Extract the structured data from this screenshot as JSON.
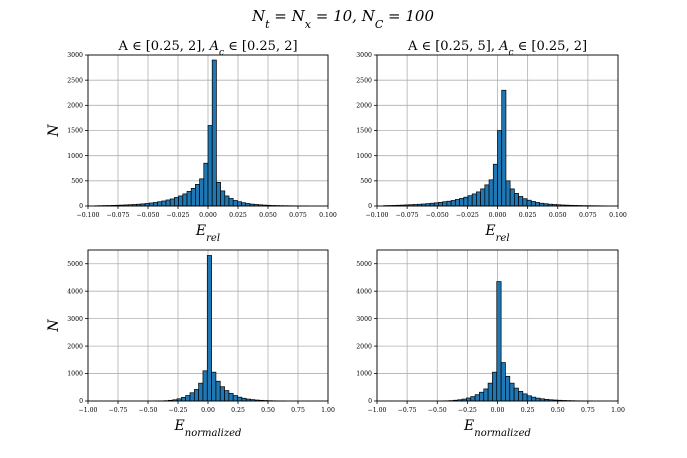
{
  "figure": {
    "suptitle": "N_t = N_x = 10,    N_C = 100"
  },
  "chart_data": [
    {
      "type": "bar",
      "title": "A ∈ [0.25, 2], A_c ∈ [0.25, 2]",
      "xlabel": "E_rel",
      "ylabel": "N",
      "xlim": [
        -0.1,
        0.1
      ],
      "ylim": [
        0,
        3000
      ],
      "xticks": [
        -0.1,
        -0.075,
        -0.05,
        -0.025,
        0.0,
        0.025,
        0.05,
        0.075,
        0.1
      ],
      "xtick_labels": [
        "−0.100",
        "−0.075",
        "−0.050",
        "−0.025",
        "0.000",
        "0.025",
        "0.050",
        "0.075",
        "0.100"
      ],
      "yticks": [
        0,
        500,
        1000,
        1500,
        2000,
        2500,
        3000
      ],
      "ytick_labels": [
        "0",
        "500",
        "1000",
        "1500",
        "2000",
        "2500",
        "3000"
      ],
      "grid": true,
      "bin_width": 0.0035,
      "bins": [
        [
          -0.0945,
          5
        ],
        [
          -0.091,
          7
        ],
        [
          -0.0875,
          9
        ],
        [
          -0.084,
          10
        ],
        [
          -0.0805,
          13
        ],
        [
          -0.077,
          15
        ],
        [
          -0.0735,
          18
        ],
        [
          -0.07,
          22
        ],
        [
          -0.0665,
          26
        ],
        [
          -0.063,
          30
        ],
        [
          -0.0595,
          36
        ],
        [
          -0.056,
          42
        ],
        [
          -0.0525,
          50
        ],
        [
          -0.049,
          60
        ],
        [
          -0.0455,
          70
        ],
        [
          -0.042,
          85
        ],
        [
          -0.0385,
          100
        ],
        [
          -0.035,
          120
        ],
        [
          -0.0315,
          140
        ],
        [
          -0.028,
          170
        ],
        [
          -0.0245,
          200
        ],
        [
          -0.021,
          240
        ],
        [
          -0.0175,
          290
        ],
        [
          -0.014,
          350
        ],
        [
          -0.0105,
          430
        ],
        [
          -0.007,
          540
        ],
        [
          -0.0035,
          850
        ],
        [
          0.0,
          1600
        ],
        [
          0.0035,
          2900
        ],
        [
          0.007,
          470
        ],
        [
          0.0105,
          300
        ],
        [
          0.014,
          200
        ],
        [
          0.0175,
          150
        ],
        [
          0.021,
          110
        ],
        [
          0.0245,
          85
        ],
        [
          0.028,
          65
        ],
        [
          0.0315,
          50
        ],
        [
          0.035,
          38
        ],
        [
          0.0385,
          30
        ],
        [
          0.042,
          24
        ],
        [
          0.0455,
          18
        ],
        [
          0.049,
          14
        ],
        [
          0.0525,
          11
        ],
        [
          0.056,
          9
        ],
        [
          0.0595,
          7
        ],
        [
          0.063,
          6
        ],
        [
          0.0665,
          5
        ],
        [
          0.07,
          4
        ],
        [
          0.0735,
          3
        ],
        [
          0.077,
          3
        ],
        [
          0.0805,
          2
        ]
      ]
    },
    {
      "type": "bar",
      "title": "A ∈ [0.25, 5], A_c ∈ [0.25, 2]",
      "xlabel": "E_rel",
      "ylabel": "",
      "xlim": [
        -0.1,
        0.1
      ],
      "ylim": [
        0,
        3000
      ],
      "xticks": [
        -0.1,
        -0.075,
        -0.05,
        -0.025,
        0.0,
        0.025,
        0.05,
        0.075,
        0.1
      ],
      "xtick_labels": [
        "−0.100",
        "−0.075",
        "−0.050",
        "−0.025",
        "0.000",
        "0.025",
        "0.050",
        "0.075",
        "0.100"
      ],
      "yticks": [
        0,
        500,
        1000,
        1500,
        2000,
        2500,
        3000
      ],
      "ytick_labels": [
        "0",
        "500",
        "1000",
        "1500",
        "2000",
        "2500",
        "3000"
      ],
      "grid": true,
      "bin_width": 0.0035,
      "bins": [
        [
          -0.0945,
          8
        ],
        [
          -0.091,
          10
        ],
        [
          -0.0875,
          12
        ],
        [
          -0.084,
          15
        ],
        [
          -0.0805,
          18
        ],
        [
          -0.077,
          22
        ],
        [
          -0.0735,
          26
        ],
        [
          -0.07,
          30
        ],
        [
          -0.0665,
          35
        ],
        [
          -0.063,
          40
        ],
        [
          -0.0595,
          47
        ],
        [
          -0.056,
          55
        ],
        [
          -0.0525,
          63
        ],
        [
          -0.049,
          72
        ],
        [
          -0.0455,
          85
        ],
        [
          -0.042,
          95
        ],
        [
          -0.0385,
          110
        ],
        [
          -0.035,
          130
        ],
        [
          -0.0315,
          150
        ],
        [
          -0.028,
          175
        ],
        [
          -0.0245,
          205
        ],
        [
          -0.021,
          240
        ],
        [
          -0.0175,
          280
        ],
        [
          -0.014,
          340
        ],
        [
          -0.0105,
          420
        ],
        [
          -0.007,
          520
        ],
        [
          -0.0035,
          830
        ],
        [
          0.0,
          1500
        ],
        [
          0.0035,
          2300
        ],
        [
          0.007,
          500
        ],
        [
          0.0105,
          340
        ],
        [
          0.014,
          250
        ],
        [
          0.0175,
          190
        ],
        [
          0.021,
          145
        ],
        [
          0.0245,
          115
        ],
        [
          0.028,
          90
        ],
        [
          0.0315,
          70
        ],
        [
          0.035,
          55
        ],
        [
          0.0385,
          45
        ],
        [
          0.042,
          36
        ],
        [
          0.0455,
          30
        ],
        [
          0.049,
          25
        ],
        [
          0.0525,
          20
        ],
        [
          0.056,
          17
        ],
        [
          0.0595,
          14
        ],
        [
          0.063,
          12
        ],
        [
          0.0665,
          10
        ],
        [
          0.07,
          8
        ],
        [
          0.0735,
          7
        ],
        [
          0.077,
          6
        ],
        [
          0.0805,
          5
        ],
        [
          0.084,
          4
        ],
        [
          0.0875,
          3
        ]
      ]
    },
    {
      "type": "bar",
      "title": "",
      "xlabel": "E_normalized",
      "ylabel": "N",
      "xlim": [
        -1.0,
        1.0
      ],
      "ylim": [
        0,
        5500
      ],
      "xticks": [
        -1.0,
        -0.75,
        -0.5,
        -0.25,
        0.0,
        0.25,
        0.5,
        0.75,
        1.0
      ],
      "xtick_labels": [
        "−1.00",
        "−0.75",
        "−0.50",
        "−0.25",
        "0.00",
        "0.25",
        "0.50",
        "0.75",
        "1.00"
      ],
      "yticks": [
        0,
        1000,
        2000,
        3000,
        4000,
        5000
      ],
      "ytick_labels": [
        "0",
        "1000",
        "2000",
        "3000",
        "4000",
        "5000"
      ],
      "grid": true,
      "bin_width": 0.036,
      "bins": [
        [
          -0.438,
          3
        ],
        [
          -0.402,
          6
        ],
        [
          -0.366,
          12
        ],
        [
          -0.33,
          25
        ],
        [
          -0.294,
          45
        ],
        [
          -0.258,
          80
        ],
        [
          -0.222,
          130
        ],
        [
          -0.186,
          200
        ],
        [
          -0.15,
          300
        ],
        [
          -0.114,
          420
        ],
        [
          -0.078,
          650
        ],
        [
          -0.042,
          1100
        ],
        [
          -0.006,
          5300
        ],
        [
          0.03,
          1050
        ],
        [
          0.066,
          720
        ],
        [
          0.102,
          520
        ],
        [
          0.138,
          380
        ],
        [
          0.174,
          280
        ],
        [
          0.21,
          200
        ],
        [
          0.246,
          140
        ],
        [
          0.282,
          100
        ],
        [
          0.318,
          70
        ],
        [
          0.354,
          50
        ],
        [
          0.39,
          35
        ],
        [
          0.426,
          25
        ],
        [
          0.462,
          18
        ],
        [
          0.498,
          12
        ],
        [
          0.534,
          8
        ],
        [
          0.57,
          5
        ],
        [
          0.606,
          3
        ]
      ]
    },
    {
      "type": "bar",
      "title": "",
      "xlabel": "E_normalized",
      "ylabel": "",
      "xlim": [
        -1.0,
        1.0
      ],
      "ylim": [
        0,
        5500
      ],
      "xticks": [
        -1.0,
        -0.75,
        -0.5,
        -0.25,
        0.0,
        0.25,
        0.5,
        0.75,
        1.0
      ],
      "xtick_labels": [
        "−1.00",
        "−0.75",
        "−0.50",
        "−0.25",
        "0.00",
        "0.25",
        "0.50",
        "0.75",
        "1.00"
      ],
      "yticks": [
        0,
        1000,
        2000,
        3000,
        4000,
        5000
      ],
      "ytick_labels": [
        "0",
        "1000",
        "2000",
        "3000",
        "4000",
        "5000"
      ],
      "grid": true,
      "bin_width": 0.036,
      "bins": [
        [
          -0.474,
          4
        ],
        [
          -0.438,
          8
        ],
        [
          -0.402,
          15
        ],
        [
          -0.366,
          28
        ],
        [
          -0.33,
          45
        ],
        [
          -0.294,
          70
        ],
        [
          -0.258,
          110
        ],
        [
          -0.222,
          160
        ],
        [
          -0.186,
          230
        ],
        [
          -0.15,
          320
        ],
        [
          -0.114,
          440
        ],
        [
          -0.078,
          650
        ],
        [
          -0.042,
          1050
        ],
        [
          -0.006,
          4350
        ],
        [
          0.03,
          1400
        ],
        [
          0.066,
          900
        ],
        [
          0.102,
          650
        ],
        [
          0.138,
          470
        ],
        [
          0.174,
          350
        ],
        [
          0.21,
          260
        ],
        [
          0.246,
          190
        ],
        [
          0.282,
          140
        ],
        [
          0.318,
          105
        ],
        [
          0.354,
          80
        ],
        [
          0.39,
          60
        ],
        [
          0.426,
          45
        ],
        [
          0.462,
          35
        ],
        [
          0.498,
          27
        ],
        [
          0.534,
          20
        ],
        [
          0.57,
          15
        ],
        [
          0.606,
          11
        ],
        [
          0.642,
          8
        ],
        [
          0.678,
          6
        ],
        [
          0.714,
          4
        ],
        [
          0.75,
          3
        ]
      ]
    }
  ]
}
